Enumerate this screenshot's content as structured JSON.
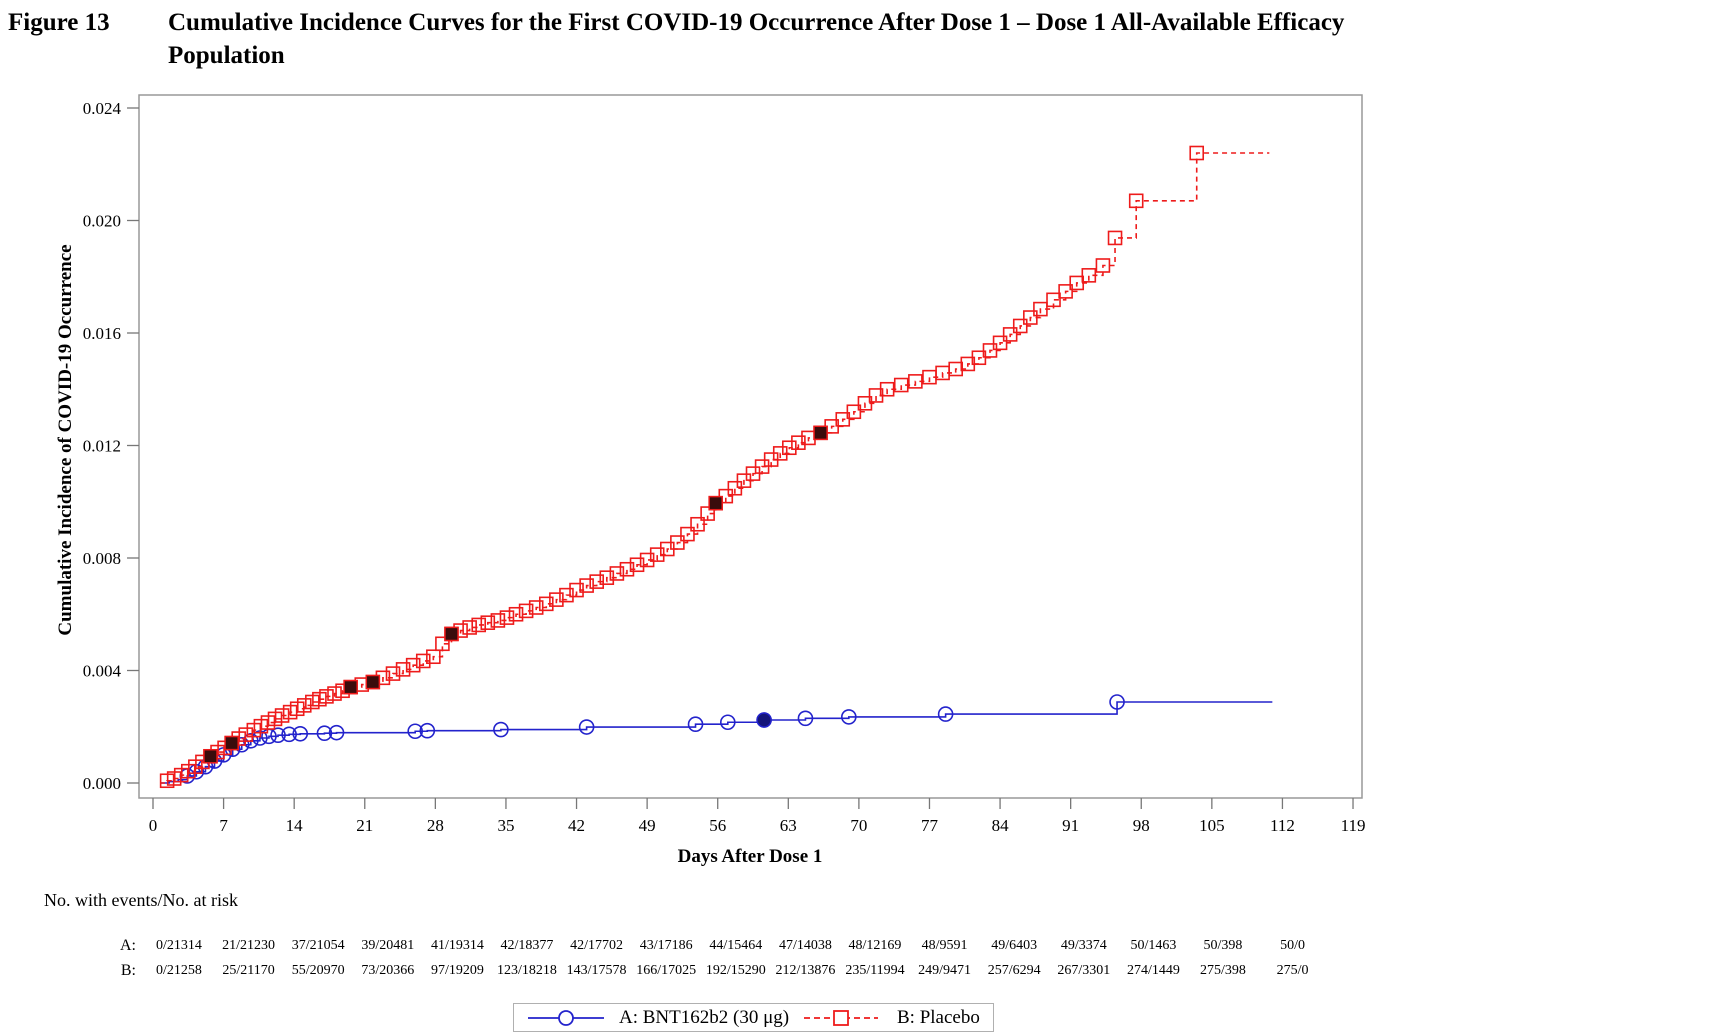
{
  "figure": {
    "label": "Figure 13",
    "title_line1": "Cumulative Incidence Curves for the First COVID-19 Occurrence After Dose 1 – Dose 1 All-Available Efficacy",
    "title_line2": "Population"
  },
  "chart_data": {
    "type": "line",
    "title": "Cumulative Incidence Curves for the First COVID-19 Occurrence After Dose 1 – Dose 1 All-Available Efficacy Population",
    "xlabel": "Days After Dose 1",
    "ylabel": "Cumulative Incidence of COVID-19 Occurrence",
    "xlim": [
      0,
      119
    ],
    "ylim": [
      0,
      0.024
    ],
    "grid": false,
    "legend_position": "bottom",
    "x_ticks": [
      0,
      7,
      14,
      21,
      28,
      35,
      42,
      49,
      56,
      63,
      70,
      77,
      84,
      91,
      98,
      105,
      112,
      119
    ],
    "y_ticks": [
      "0.000",
      "0.004",
      "0.008",
      "0.012",
      "0.016",
      "0.020",
      "0.024"
    ],
    "series": [
      {
        "name": "A: BNT162b2 (30 μg)",
        "color": "#2323cc",
        "marker": "circle",
        "line": "solid",
        "marker_start": 3,
        "points": [
          [
            0.7,
            0
          ],
          [
            1.6,
            5e-05
          ],
          [
            2.5,
            0.00012
          ],
          [
            3.4,
            0.00025
          ],
          [
            4.3,
            0.0004
          ],
          [
            5.2,
            0.00058
          ],
          [
            6.1,
            0.00078
          ],
          [
            7,
            0.001
          ],
          [
            7.9,
            0.0012
          ],
          [
            8.8,
            0.00136
          ],
          [
            9.7,
            0.0015
          ],
          [
            10.6,
            0.0016
          ],
          [
            11.5,
            0.00166
          ],
          [
            12.4,
            0.0017
          ],
          [
            13.5,
            0.00173
          ],
          [
            14.6,
            0.00175
          ],
          [
            17,
            0.00177
          ],
          [
            18.2,
            0.00179
          ],
          [
            26,
            0.00184
          ],
          [
            27.2,
            0.00186
          ],
          [
            34.5,
            0.0019
          ],
          [
            43,
            0.00199
          ],
          [
            53.8,
            0.00209
          ],
          [
            57,
            0.00216
          ],
          [
            60.6,
            0.00224
          ],
          [
            64.7,
            0.0023
          ],
          [
            69,
            0.00235
          ],
          [
            78.6,
            0.00245
          ],
          [
            95.6,
            0.00288
          ],
          [
            111,
            0.00288
          ]
        ],
        "filled_points": [
          [
            60.6,
            0.00224
          ]
        ]
      },
      {
        "name": "B: Placebo",
        "color": "#ee1b1b",
        "marker": "square",
        "line": "dashed",
        "marker_start": 1,
        "points": [
          [
            0.7,
            0
          ],
          [
            1.4,
            8e-05
          ],
          [
            2.1,
            0.00016
          ],
          [
            2.8,
            0.00028
          ],
          [
            3.5,
            0.00042
          ],
          [
            4.2,
            0.00058
          ],
          [
            4.9,
            0.00075
          ],
          [
            5.7,
            0.00095
          ],
          [
            6.4,
            0.0011
          ],
          [
            7.1,
            0.00125
          ],
          [
            7.8,
            0.00142
          ],
          [
            8.5,
            0.00158
          ],
          [
            9.2,
            0.00172
          ],
          [
            10,
            0.00188
          ],
          [
            10.7,
            0.00202
          ],
          [
            11.4,
            0.00215
          ],
          [
            12.1,
            0.00228
          ],
          [
            12.8,
            0.0024
          ],
          [
            13.6,
            0.00252
          ],
          [
            14.3,
            0.00264
          ],
          [
            15,
            0.00276
          ],
          [
            15.8,
            0.00288
          ],
          [
            16.5,
            0.00298
          ],
          [
            17.2,
            0.00308
          ],
          [
            18,
            0.00318
          ],
          [
            18.8,
            0.00328
          ],
          [
            19.6,
            0.00341
          ],
          [
            20.7,
            0.0035
          ],
          [
            21.8,
            0.00359
          ],
          [
            22.8,
            0.00374
          ],
          [
            23.8,
            0.00389
          ],
          [
            24.8,
            0.00404
          ],
          [
            25.8,
            0.00419
          ],
          [
            26.8,
            0.00434
          ],
          [
            27.8,
            0.00449
          ],
          [
            28.7,
            0.00495
          ],
          [
            29.6,
            0.0053
          ],
          [
            30.5,
            0.00542
          ],
          [
            31.4,
            0.00553
          ],
          [
            32.3,
            0.00562
          ],
          [
            33.2,
            0.0057
          ],
          [
            34.2,
            0.00578
          ],
          [
            35.1,
            0.00588
          ],
          [
            36,
            0.006
          ],
          [
            37,
            0.00612
          ],
          [
            38,
            0.00624
          ],
          [
            39,
            0.00637
          ],
          [
            40,
            0.00652
          ],
          [
            41,
            0.00668
          ],
          [
            42,
            0.00686
          ],
          [
            43,
            0.00702
          ],
          [
            44,
            0.00716
          ],
          [
            45,
            0.0073
          ],
          [
            46,
            0.00745
          ],
          [
            47,
            0.0076
          ],
          [
            48,
            0.00776
          ],
          [
            49,
            0.00793
          ],
          [
            50,
            0.00812
          ],
          [
            51,
            0.00832
          ],
          [
            52,
            0.00855
          ],
          [
            53,
            0.00885
          ],
          [
            54,
            0.0092
          ],
          [
            55,
            0.00958
          ],
          [
            55.8,
            0.00995
          ],
          [
            56.8,
            0.0102
          ],
          [
            57.7,
            0.01048
          ],
          [
            58.6,
            0.01075
          ],
          [
            59.5,
            0.011
          ],
          [
            60.4,
            0.01125
          ],
          [
            61.3,
            0.0115
          ],
          [
            62.2,
            0.01172
          ],
          [
            63.1,
            0.01192
          ],
          [
            64,
            0.0121
          ],
          [
            65,
            0.01227
          ],
          [
            66.2,
            0.01245
          ],
          [
            67.3,
            0.01268
          ],
          [
            68.4,
            0.01293
          ],
          [
            69.5,
            0.0132
          ],
          [
            70.6,
            0.0135
          ],
          [
            71.7,
            0.01378
          ],
          [
            72.8,
            0.014
          ],
          [
            74.2,
            0.01415
          ],
          [
            75.6,
            0.01428
          ],
          [
            77,
            0.01443
          ],
          [
            78.3,
            0.01458
          ],
          [
            79.6,
            0.01472
          ],
          [
            80.8,
            0.0149
          ],
          [
            81.9,
            0.01512
          ],
          [
            83,
            0.01538
          ],
          [
            84,
            0.01565
          ],
          [
            85,
            0.01595
          ],
          [
            86,
            0.01625
          ],
          [
            87,
            0.01655
          ],
          [
            88,
            0.01685
          ],
          [
            89.3,
            0.01718
          ],
          [
            90.5,
            0.01748
          ],
          [
            91.6,
            0.01778
          ],
          [
            92.8,
            0.01805
          ],
          [
            94.2,
            0.0184
          ],
          [
            95.4,
            0.01938
          ],
          [
            97.5,
            0.0207
          ],
          [
            103.5,
            0.0224
          ],
          [
            110.7,
            0.0224
          ]
        ],
        "filled_points": [
          [
            5.7,
            0.00095
          ],
          [
            7.8,
            0.00142
          ],
          [
            19.6,
            0.00341
          ],
          [
            21.8,
            0.00359
          ],
          [
            29.6,
            0.0053
          ],
          [
            55.8,
            0.00995
          ],
          [
            66.2,
            0.01245
          ]
        ]
      }
    ]
  },
  "risk_table": {
    "header": "No. with events/No. at risk",
    "rows": [
      {
        "label": "A:",
        "values": [
          "0/21314",
          "21/21230",
          "37/21054",
          "39/20481",
          "41/19314",
          "42/18377",
          "42/17702",
          "43/17186",
          "44/15464",
          "47/14038",
          "48/12169",
          "48/9591",
          "49/6403",
          "49/3374",
          "50/1463",
          "50/398",
          "50/0"
        ]
      },
      {
        "label": "B:",
        "values": [
          "0/21258",
          "25/21170",
          "55/20970",
          "73/20366",
          "97/19209",
          "123/18218",
          "143/17578",
          "166/17025",
          "192/15290",
          "212/13876",
          "235/11994",
          "249/9471",
          "257/6294",
          "267/3301",
          "274/1449",
          "275/398",
          "275/0"
        ]
      }
    ]
  },
  "legend": {
    "item_a": "A: BNT162b2 (30 μg)",
    "item_b": "B: Placebo"
  },
  "colors": {
    "series_a": "#2323cc",
    "series_b": "#ee1b1b",
    "frame": "#999999",
    "filled_marker_b": "#3a0c0c",
    "filled_marker_a": "#14147a"
  }
}
